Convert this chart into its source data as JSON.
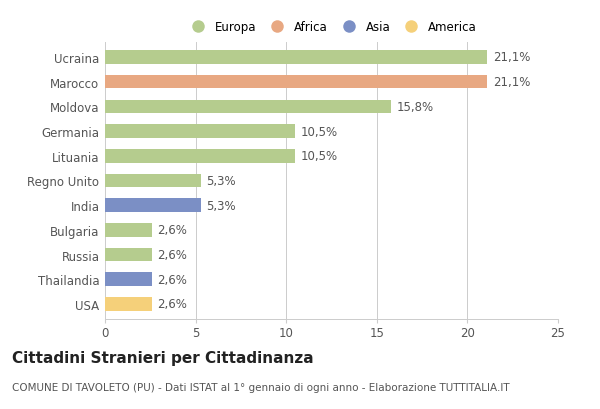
{
  "categories": [
    "Ucraina",
    "Marocco",
    "Moldova",
    "Germania",
    "Lituania",
    "Regno Unito",
    "India",
    "Bulgaria",
    "Russia",
    "Thailandia",
    "USA"
  ],
  "values": [
    21.1,
    21.1,
    15.8,
    10.5,
    10.5,
    5.3,
    5.3,
    2.6,
    2.6,
    2.6,
    2.6
  ],
  "labels": [
    "21,1%",
    "21,1%",
    "15,8%",
    "10,5%",
    "10,5%",
    "5,3%",
    "5,3%",
    "2,6%",
    "2,6%",
    "2,6%",
    "2,6%"
  ],
  "continents": [
    "Europa",
    "Africa",
    "Europa",
    "Europa",
    "Europa",
    "Europa",
    "Asia",
    "Europa",
    "Europa",
    "Asia",
    "America"
  ],
  "colors": {
    "Europa": "#b5cc8e",
    "Africa": "#e8a882",
    "Asia": "#7b8fc5",
    "America": "#f5d07a"
  },
  "legend_order": [
    "Europa",
    "Africa",
    "Asia",
    "America"
  ],
  "xlim": [
    0,
    25
  ],
  "xticks": [
    0,
    5,
    10,
    15,
    20,
    25
  ],
  "title": "Cittadini Stranieri per Cittadinanza",
  "subtitle": "COMUNE DI TAVOLETO (PU) - Dati ISTAT al 1° gennaio di ogni anno - Elaborazione TUTTITALIA.IT",
  "bg_color": "#ffffff",
  "grid_color": "#cccccc",
  "bar_height": 0.55,
  "label_fontsize": 8.5,
  "tick_fontsize": 8.5,
  "title_fontsize": 11,
  "subtitle_fontsize": 7.5
}
